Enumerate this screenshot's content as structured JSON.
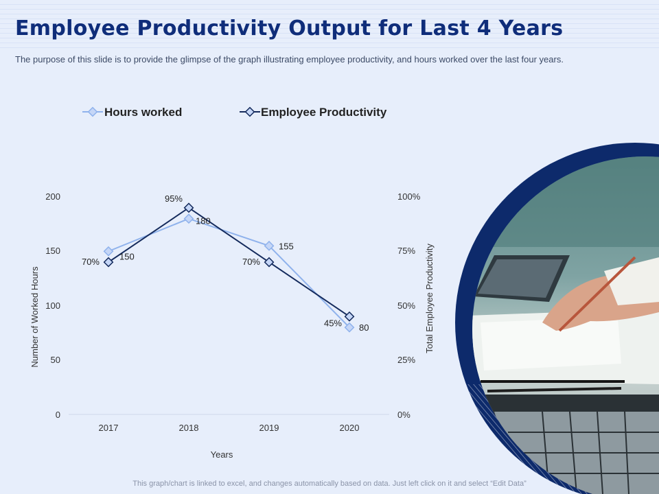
{
  "slide": {
    "title": "Employee Productivity Output for Last 4 Years",
    "subtitle": "The purpose of this slide is to provide the glimpse of the graph illustrating employee productivity, and hours worked over the last four years.",
    "footer": "This graph/chart is linked to excel,  and changes automatically based on data. Just left click on it and select “Edit Data”"
  },
  "colors": {
    "hours": "#8fb2ec",
    "productivity": "#142a5c",
    "title": "#0f2d7a",
    "photo_ring": "#0d2a6b"
  },
  "chart_data": {
    "type": "line",
    "categories": [
      "2017",
      "2018",
      "2019",
      "2020"
    ],
    "series": [
      {
        "name": "Hours worked",
        "axis": "left",
        "values": [
          150,
          180,
          155,
          80
        ],
        "labels": [
          "150",
          "180",
          "155",
          "80"
        ]
      },
      {
        "name": "Employee Productivity",
        "axis": "right",
        "values": [
          70,
          95,
          70,
          45
        ],
        "labels": [
          "70%",
          "95%",
          "70%",
          "45%"
        ]
      }
    ],
    "left_axis": {
      "title": "Number of Worked Hours",
      "min": 0,
      "max": 200,
      "ticks": [
        "0",
        "50",
        "100",
        "150",
        "200"
      ]
    },
    "right_axis": {
      "title": "Total Employee Productivity",
      "min": 0,
      "max": 100,
      "ticks": [
        "0%",
        "25%",
        "50%",
        "75%",
        "100%"
      ]
    },
    "xlabel": "Years",
    "legend_position": "top"
  }
}
